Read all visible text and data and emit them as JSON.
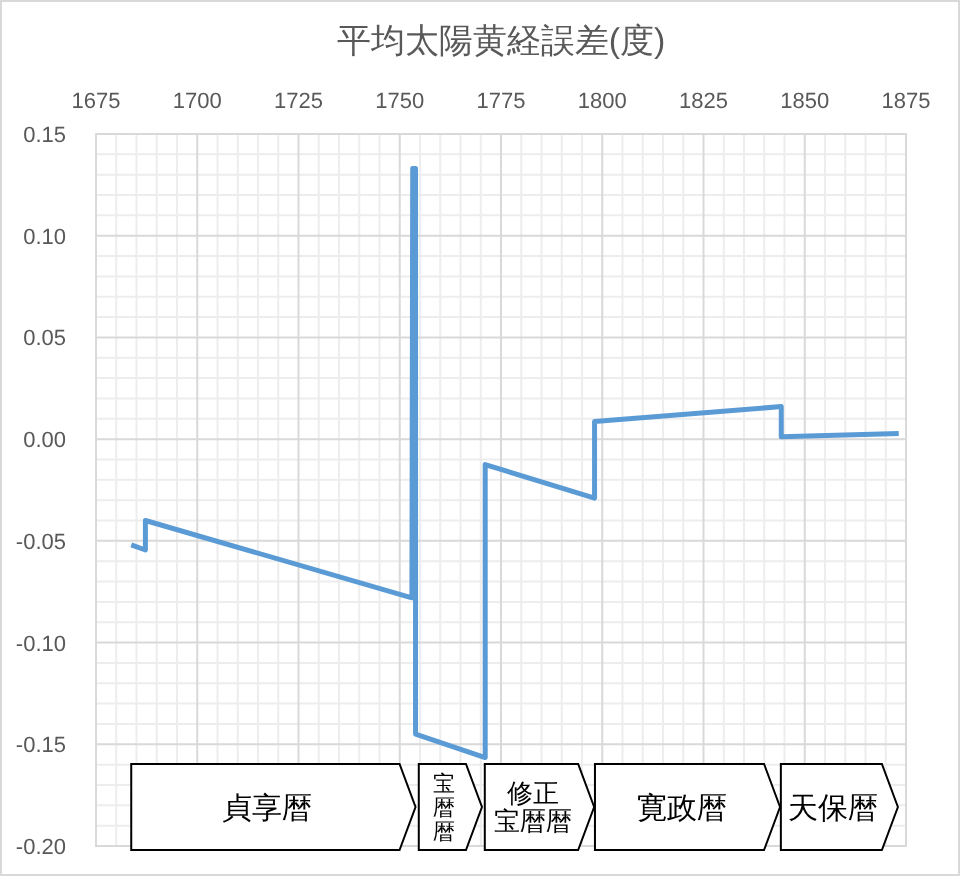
{
  "chart_data": {
    "type": "line",
    "title": "平均太陽黄経誤差(度)",
    "series": [
      {
        "color": "#5b9bd5",
        "x": [
          1683.7,
          1687.2,
          1687.2,
          1753.0,
          1753.2,
          1753.9,
          1753.9,
          1771.1,
          1771.1,
          1798.1,
          1798.1,
          1844.2,
          1844.2,
          1873.2
        ],
        "values": [
          -0.052,
          -0.0545,
          -0.04,
          -0.078,
          0.133,
          0.133,
          -0.145,
          -0.1565,
          -0.0125,
          -0.029,
          0.0087,
          0.016,
          0.0012,
          0.0028
        ]
      }
    ],
    "xlim": [
      1675,
      1875
    ],
    "xticks": [
      1675,
      1700,
      1725,
      1750,
      1775,
      1800,
      1825,
      1850,
      1875
    ],
    "ylim": [
      -0.2,
      0.15
    ],
    "yticks": [
      {
        "value": -0.2,
        "label": "-0.20"
      },
      {
        "value": -0.15,
        "label": "-0.15"
      },
      {
        "value": -0.1,
        "label": "-0.10"
      },
      {
        "value": -0.05,
        "label": "-0.05"
      },
      {
        "value": 0,
        "label": "0.00"
      },
      {
        "value": 0.05,
        "label": "0.05"
      },
      {
        "value": 0.1,
        "label": "0.10"
      },
      {
        "value": 0.15,
        "label": "0.15"
      }
    ],
    "grid": true,
    "marker": "none",
    "line_style": "solid",
    "bands": [
      {
        "axis": "x",
        "from": 1683.7,
        "to": 1753.9,
        "label": "貞享暦",
        "color": "#ffffff"
      },
      {
        "axis": "x",
        "from": 1754.7,
        "to": 1770.3,
        "label": "宝暦暦",
        "color": "#ffffff"
      },
      {
        "axis": "x",
        "from": 1771.0,
        "to": 1798.0,
        "label": "修正宝暦暦",
        "color": "#ffffff"
      },
      {
        "axis": "x",
        "from": 1798.2,
        "to": 1843.9,
        "label": "寛政暦",
        "color": "#ffffff"
      },
      {
        "axis": "x",
        "from": 1844.1,
        "to": 1873.0,
        "label": "天保暦",
        "color": "#ffffff"
      }
    ]
  }
}
